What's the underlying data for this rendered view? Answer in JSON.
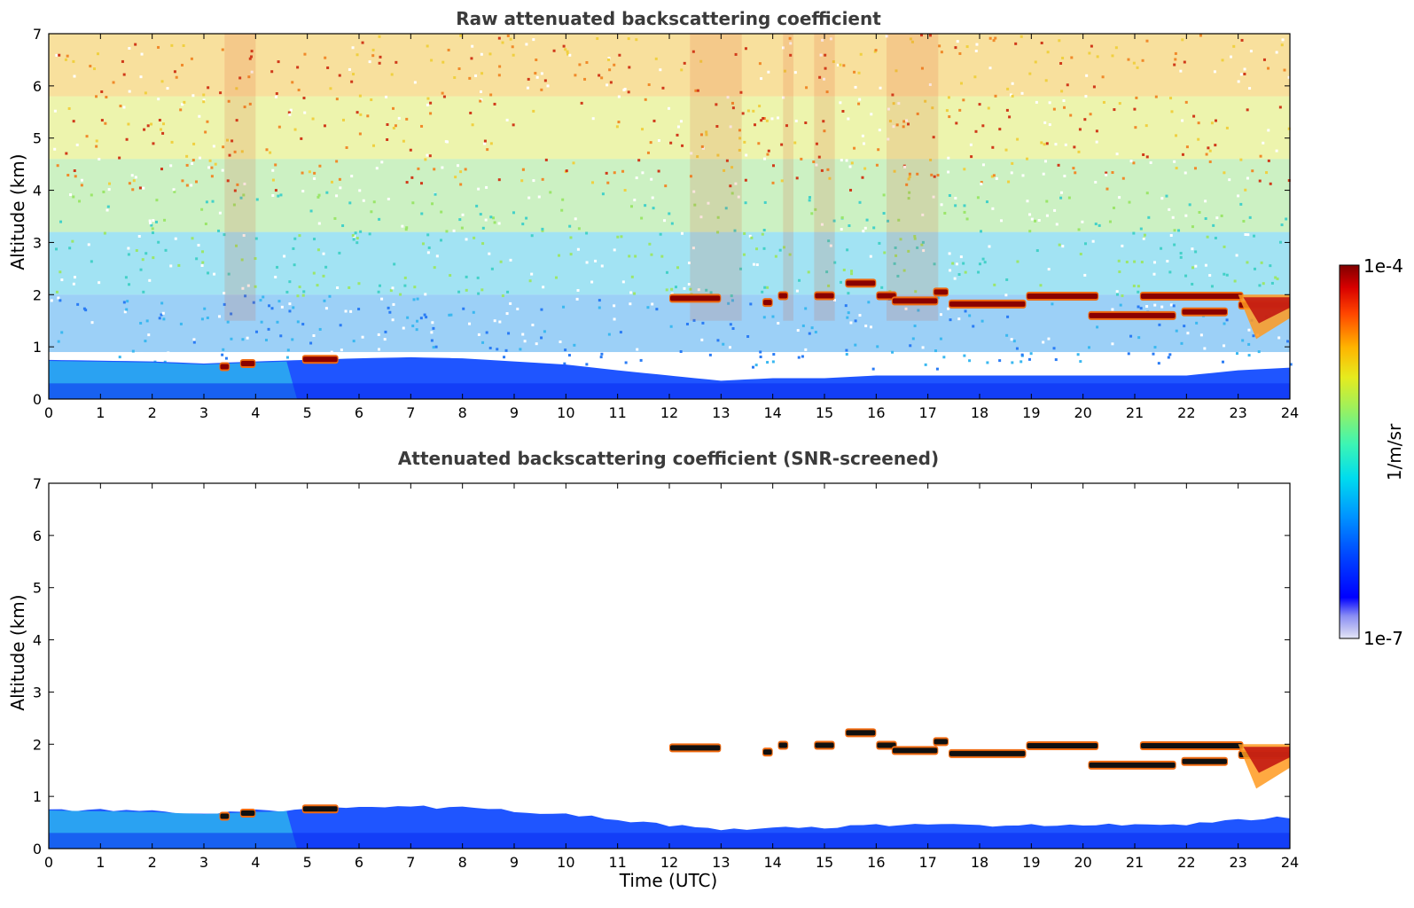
{
  "chart_data": [
    {
      "type": "heatmap",
      "title": "Raw attenuated backscattering coefficient",
      "xlabel": "",
      "ylabel": "Altitude (km)",
      "xlim": [
        0,
        24
      ],
      "ylim": [
        0,
        7
      ],
      "x_ticks": [
        "0",
        "1",
        "2",
        "3",
        "4",
        "5",
        "6",
        "7",
        "8",
        "9",
        "10",
        "11",
        "12",
        "13",
        "14",
        "15",
        "16",
        "17",
        "18",
        "19",
        "20",
        "21",
        "22",
        "23",
        "24"
      ],
      "y_ticks": [
        "0",
        "1",
        "2",
        "3",
        "4",
        "5",
        "6",
        "7"
      ],
      "screened": false,
      "boundary_layer_top_km": [
        [
          0,
          0.75
        ],
        [
          2,
          0.72
        ],
        [
          3,
          0.68
        ],
        [
          4,
          0.72
        ],
        [
          5,
          0.75
        ],
        [
          6,
          0.78
        ],
        [
          7,
          0.8
        ],
        [
          8,
          0.78
        ],
        [
          9,
          0.72
        ],
        [
          10,
          0.66
        ],
        [
          11,
          0.55
        ],
        [
          12,
          0.45
        ],
        [
          13,
          0.35
        ],
        [
          14,
          0.4
        ],
        [
          15,
          0.4
        ],
        [
          16,
          0.45
        ],
        [
          17,
          0.45
        ],
        [
          18,
          0.45
        ],
        [
          19,
          0.45
        ],
        [
          20,
          0.45
        ],
        [
          21,
          0.45
        ],
        [
          22,
          0.45
        ],
        [
          23,
          0.55
        ],
        [
          24,
          0.6
        ]
      ],
      "cloud_layers": [
        {
          "t0": 3.3,
          "t1": 3.5,
          "alt_km": 0.62
        },
        {
          "t0": 3.7,
          "t1": 4.0,
          "alt_km": 0.68
        },
        {
          "t0": 4.9,
          "t1": 5.6,
          "alt_km": 0.76
        },
        {
          "t0": 12.0,
          "t1": 13.0,
          "alt_km": 1.93
        },
        {
          "t0": 13.8,
          "t1": 14.0,
          "alt_km": 1.85
        },
        {
          "t0": 14.1,
          "t1": 14.3,
          "alt_km": 1.98
        },
        {
          "t0": 14.8,
          "t1": 15.2,
          "alt_km": 1.98
        },
        {
          "t0": 15.4,
          "t1": 16.0,
          "alt_km": 2.22
        },
        {
          "t0": 16.0,
          "t1": 16.4,
          "alt_km": 1.98
        },
        {
          "t0": 16.3,
          "t1": 17.2,
          "alt_km": 1.88
        },
        {
          "t0": 17.1,
          "t1": 17.4,
          "alt_km": 2.05
        },
        {
          "t0": 17.4,
          "t1": 18.9,
          "alt_km": 1.82
        },
        {
          "t0": 18.9,
          "t1": 20.3,
          "alt_km": 1.97
        },
        {
          "t0": 20.1,
          "t1": 21.8,
          "alt_km": 1.6
        },
        {
          "t0": 21.1,
          "t1": 23.1,
          "alt_km": 1.97
        },
        {
          "t0": 21.9,
          "t1": 22.8,
          "alt_km": 1.67
        },
        {
          "t0": 23.0,
          "t1": 24.0,
          "alt_km": 1.8
        }
      ]
    },
    {
      "type": "heatmap",
      "title": "Attenuated backscattering coefficient (SNR-screened)",
      "xlabel": "Time (UTC)",
      "ylabel": "Altitude (km)",
      "xlim": [
        0,
        24
      ],
      "ylim": [
        0,
        7
      ],
      "x_ticks": [
        "0",
        "1",
        "2",
        "3",
        "4",
        "5",
        "6",
        "7",
        "8",
        "9",
        "10",
        "11",
        "12",
        "13",
        "14",
        "15",
        "16",
        "17",
        "18",
        "19",
        "20",
        "21",
        "22",
        "23",
        "24"
      ],
      "y_ticks": [
        "0",
        "1",
        "2",
        "3",
        "4",
        "5",
        "6",
        "7"
      ],
      "screened": true
    }
  ],
  "colorbar": {
    "label": "1/m/sr",
    "max_label": "1e-4",
    "min_label": "1e-7",
    "scale": "log"
  },
  "colors": {
    "axis": "#000000",
    "title": "#3b3b3b"
  }
}
